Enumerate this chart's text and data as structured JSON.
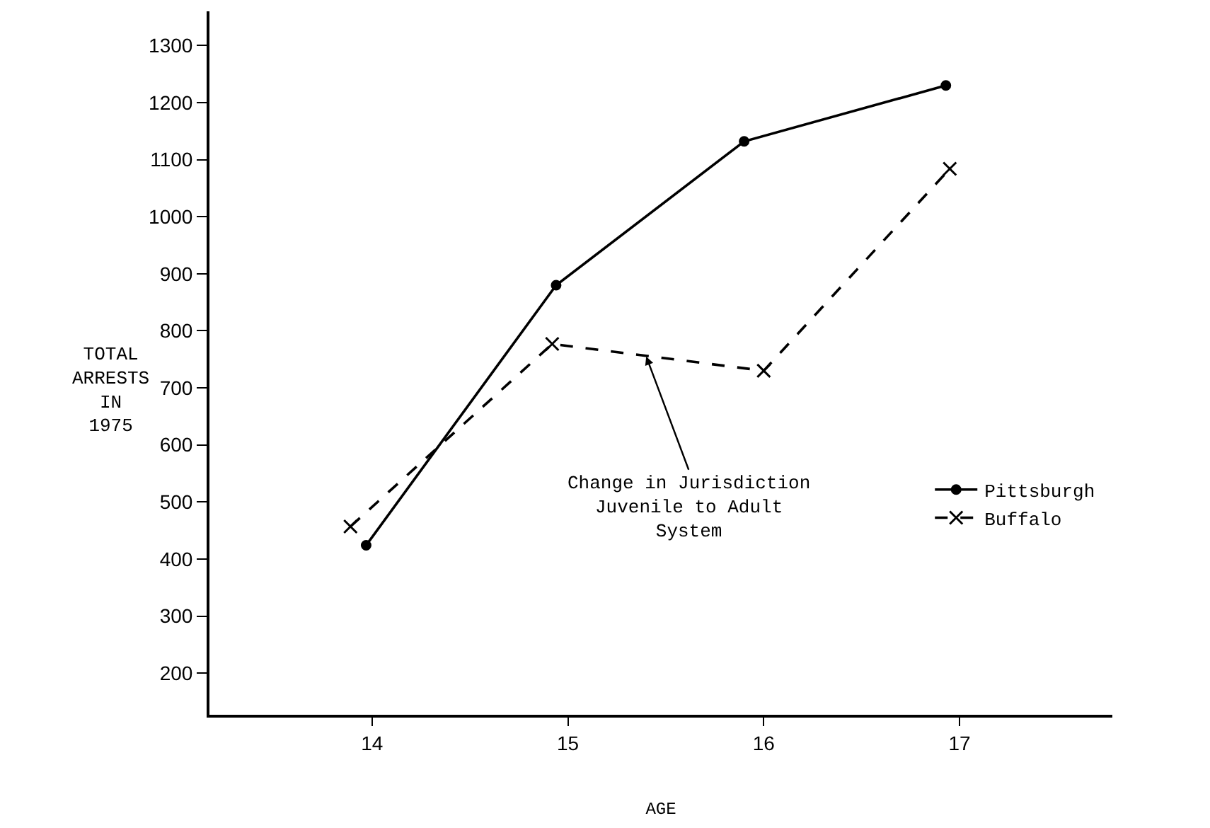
{
  "chart_data": {
    "type": "line",
    "xlabel": "AGE",
    "ylabel": "TOTAL\nARRESTS\nIN\n1975",
    "xlim": [
      13.17,
      17.78
    ],
    "xticks": [
      14,
      15,
      16,
      17
    ],
    "ylim": [
      127,
      1360
    ],
    "yticks": [
      200,
      300,
      400,
      500,
      600,
      700,
      800,
      900,
      1000,
      1100,
      1200,
      1300
    ],
    "series": [
      {
        "name": "Pittsburgh",
        "color": "#000000",
        "marker": "circle",
        "line_style": "solid",
        "x": [
          13.97,
          14.94,
          15.9,
          16.93
        ],
        "values": [
          424,
          880,
          1132,
          1230
        ]
      },
      {
        "name": "Buffalo",
        "color": "#000000",
        "marker": "cross",
        "line_style": "dashed",
        "x": [
          13.89,
          14.92,
          16.0,
          16.95
        ],
        "values": [
          457,
          777,
          730,
          1084
        ]
      }
    ],
    "annotations": [
      {
        "text": "Change in Jurisdiction\nJuvenile to Adult\nSystem",
        "x": 15.4,
        "y": 755
      }
    ],
    "legend": "right"
  }
}
